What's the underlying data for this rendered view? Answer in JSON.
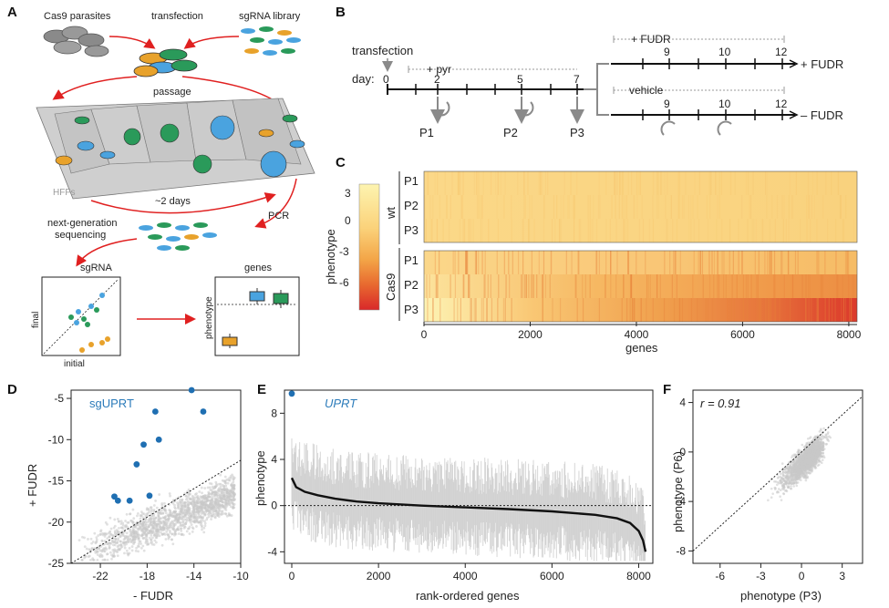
{
  "panels": {
    "A": {
      "letter": "A",
      "cas9_parasites": "Cas9 parasites",
      "transfection": "transfection",
      "sgrna_library": "sgRNA library",
      "passage": "passage",
      "hffs": "HFFs",
      "two_days": "~2 days",
      "pcr": "PCR",
      "ngs_line1": "next-generation",
      "ngs_line2": "sequencing",
      "sgrna_title": "sgRNA",
      "genes_title": "genes",
      "final_axis": "final",
      "initial_axis": "initial",
      "phenotype_axis": "phenotype"
    },
    "B": {
      "letter": "B",
      "transfection": "transfection",
      "day_label": "day:",
      "pyr": "+ pyr",
      "plus_fudr_top": "+ FUDR",
      "vehicle": "vehicle",
      "plus_fudr_end": "+ FUDR",
      "minus_fudr_end": "– FUDR",
      "days_main": [
        "0",
        "2",
        "5",
        "7"
      ],
      "days_branch": [
        "9",
        "10",
        "12"
      ],
      "passages": [
        "P1",
        "P2",
        "P3"
      ]
    },
    "C": {
      "letter": "C",
      "colorbar_label": "phenotype",
      "colorbar_ticks": [
        "3",
        "0",
        "-3",
        "-6"
      ],
      "group_wt": "wt",
      "group_cas9": "Cas9",
      "rows": [
        "P1",
        "P2",
        "P3"
      ],
      "xlabel": "genes",
      "xticks": [
        "0",
        "2000",
        "4000",
        "6000",
        "8000"
      ]
    },
    "D": {
      "letter": "D",
      "highlight_label": "sgUPRT",
      "xlabel": "- FUDR",
      "ylabel": "+ FUDR",
      "xticks": [
        "-22",
        "-18",
        "-14",
        "-10"
      ],
      "yticks": [
        "-5",
        "-10",
        "-15",
        "-20",
        "-25"
      ]
    },
    "E": {
      "letter": "E",
      "highlight_label": "UPRT",
      "xlabel": "rank-ordered genes",
      "ylabel": "phenotype",
      "xticks": [
        "0",
        "2000",
        "4000",
        "6000",
        "8000"
      ],
      "yticks": [
        "8",
        "4",
        "0",
        "-4"
      ]
    },
    "F": {
      "letter": "F",
      "r_label": "r = 0.91",
      "xlabel": "phenotype (P3)",
      "ylabel": "phenotype (P6)",
      "xticks": [
        "-6",
        "-3",
        "0",
        "3"
      ],
      "yticks": [
        "4",
        "0",
        "-4",
        "-8"
      ]
    }
  },
  "colors": {
    "accent_blue": "#2b7bba",
    "highlight_blue": "#1f6fb2",
    "red_arrow": "#e02020",
    "grey_points": "#c8c8c8",
    "orange": "#e8a22b",
    "green": "#2a9a5a",
    "heat_low": "#fdf1a8",
    "heat_high": "#d9282a"
  },
  "chart_data": [
    {
      "id": "C",
      "type": "heatmap",
      "rows": [
        "wt P1",
        "wt P2",
        "wt P3",
        "Cas9 P1",
        "Cas9 P2",
        "Cas9 P3"
      ],
      "xlabel": "genes",
      "xlim": [
        0,
        8156
      ],
      "colorbar_label": "phenotype",
      "colorbar_range": [
        -9,
        4
      ]
    },
    {
      "id": "D",
      "type": "scatter",
      "xlabel": "- FUDR",
      "ylabel": "+ FUDR",
      "xlim": [
        -24.5,
        -10
      ],
      "ylim": [
        -25,
        -4
      ],
      "highlight_series": {
        "name": "sgUPRT",
        "x": [
          -14.2,
          -13.2,
          -17.3,
          -17.0,
          -18.3,
          -18.9,
          -17.8,
          -20.8,
          -20.5,
          -19.5
        ],
        "y": [
          -4.0,
          -6.6,
          -6.6,
          -10.0,
          -10.6,
          -13.0,
          -16.8,
          -16.9,
          -17.4,
          -17.4
        ]
      }
    },
    {
      "id": "E",
      "type": "line",
      "xlabel": "rank-ordered genes",
      "ylabel": "phenotype",
      "xlim": [
        0,
        8158
      ],
      "ylim": [
        -5,
        10
      ],
      "highlight": {
        "name": "UPRT",
        "x": 0,
        "y": 9.7
      },
      "x": [
        0,
        100,
        300,
        600,
        1000,
        1500,
        2000,
        3000,
        4000,
        5000,
        6000,
        7000,
        7500,
        7800,
        8000,
        8100,
        8158
      ],
      "y": [
        2.4,
        1.6,
        1.2,
        0.9,
        0.6,
        0.35,
        0.2,
        0.0,
        -0.15,
        -0.3,
        -0.5,
        -0.8,
        -1.1,
        -1.5,
        -2.2,
        -3.0,
        -4.0
      ]
    },
    {
      "id": "F",
      "type": "scatter",
      "xlabel": "phenotype (P3)",
      "ylabel": "phenotype (P6)",
      "xlim": [
        -8,
        4.5
      ],
      "ylim": [
        -9,
        5
      ],
      "r": 0.91
    }
  ]
}
